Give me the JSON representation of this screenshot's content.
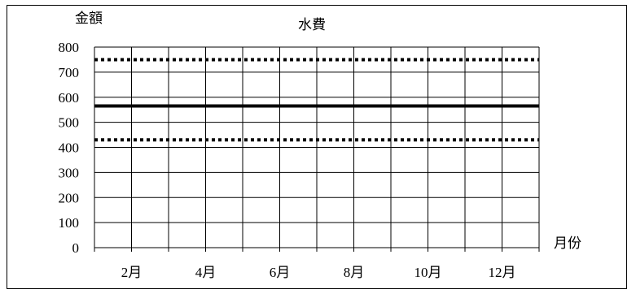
{
  "chart_data": {
    "type": "line",
    "title": "水費",
    "ylabel": "金額",
    "xlabel": "月份",
    "ylim": [
      0,
      800
    ],
    "yticks": [
      0,
      100,
      200,
      300,
      400,
      500,
      600,
      700,
      800
    ],
    "x_month_count": 12,
    "xtick_labels": [
      "2月",
      "4月",
      "6月",
      "8月",
      "10月",
      "12月"
    ],
    "grid": true,
    "lines": [
      {
        "y": 750,
        "style": "dotted",
        "color": "#000000"
      },
      {
        "y": 565,
        "style": "solid",
        "color": "#000000"
      },
      {
        "y": 430,
        "style": "dotted",
        "color": "#000000"
      }
    ]
  }
}
